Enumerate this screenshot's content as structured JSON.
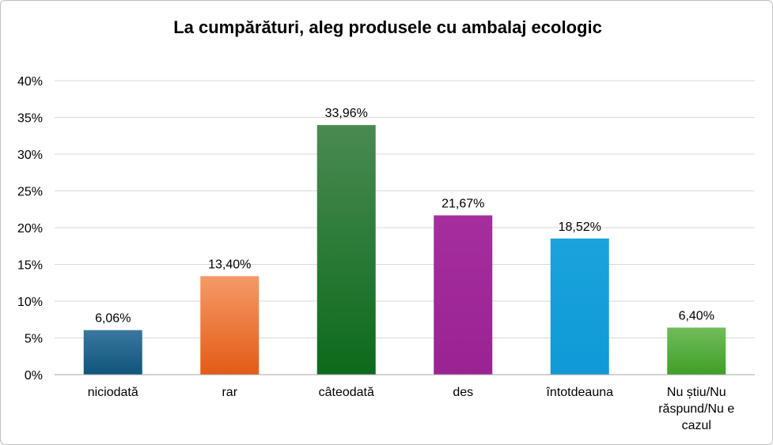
{
  "chart_data": {
    "type": "bar",
    "title": "La cumpărături, aleg produsele cu ambalaj ecologic",
    "xlabel": "",
    "ylabel": "",
    "categories": [
      "niciodată",
      "rar",
      "câteodată",
      "des",
      "întotdeauna",
      "Nu știu/Nu răspund/Nu e cazul"
    ],
    "category_lines": [
      [
        "niciodată"
      ],
      [
        "rar"
      ],
      [
        "câteodată"
      ],
      [
        "des"
      ],
      [
        "întotdeauna"
      ],
      [
        "Nu știu/Nu",
        "răspund/Nu e",
        "cazul"
      ]
    ],
    "values": [
      6.06,
      13.4,
      33.96,
      21.67,
      18.52,
      6.4
    ],
    "data_labels": [
      "6,06%",
      "13,40%",
      "33,96%",
      "21,67%",
      "18,52%",
      "6,40%"
    ],
    "ylim": [
      0,
      40
    ],
    "yticks": [
      0,
      5,
      10,
      15,
      20,
      25,
      30,
      35,
      40
    ],
    "ytick_labels": [
      "0%",
      "5%",
      "10%",
      "15%",
      "20%",
      "25%",
      "30%",
      "35%",
      "40%"
    ],
    "grid": true,
    "legend": "none",
    "colors": [
      [
        "#3a77a0",
        "#0f557a"
      ],
      [
        "#f59a68",
        "#e35b15"
      ],
      [
        "#4a8a52",
        "#0d6a1b"
      ],
      [
        "#a52e9f",
        "#9a2393"
      ],
      [
        "#1aa3dc",
        "#0f99d6"
      ],
      [
        "#71bd5a",
        "#3f9f26"
      ]
    ],
    "gridline_color": "#d9d9d9",
    "axis_color": "#a6a6a6"
  }
}
